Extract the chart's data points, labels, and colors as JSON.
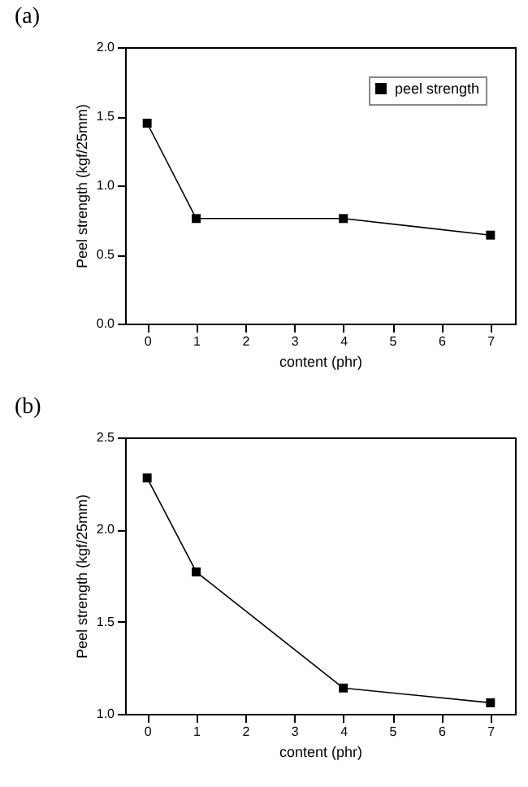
{
  "chart_data": [
    {
      "type": "line",
      "title": "(a)",
      "xlabel": "content (phr)",
      "ylabel": "Peel strength (kgf/25mm)",
      "x": [
        0,
        1,
        4,
        7
      ],
      "series": [
        {
          "name": "peel strength",
          "color": "#000000",
          "values": [
            1.45,
            0.76,
            0.76,
            0.64
          ]
        }
      ],
      "xlim": [
        -0.45,
        7.5
      ],
      "xticks": [
        0,
        1,
        2,
        3,
        4,
        5,
        6,
        7
      ],
      "ylim": [
        0,
        2
      ],
      "yticks": [
        {
          "value": 0,
          "label": "0.0"
        },
        0.5,
        {
          "value": 1,
          "label": "1.0"
        },
        1.5,
        {
          "value": 2,
          "label": "2.0"
        }
      ],
      "grid": false,
      "legend": "top right",
      "marker": "square",
      "line_style": "solid"
    },
    {
      "type": "line",
      "title": "(b)",
      "xlabel": "content (phr)",
      "ylabel": "Peel strength (kgf/25mm)",
      "x": [
        0,
        1,
        4,
        7
      ],
      "series": [
        {
          "name": "peel strength",
          "color": "#000000",
          "values": [
            2.28,
            1.77,
            1.14,
            1.06
          ]
        }
      ],
      "xlim": [
        -0.45,
        7.5
      ],
      "xticks": [
        0,
        1,
        2,
        3,
        4,
        5,
        6,
        7
      ],
      "ylim": [
        1,
        2.5
      ],
      "yticks": [
        {
          "value": 1,
          "label": "1.0"
        },
        1.5,
        {
          "value": 2,
          "label": "2.0"
        },
        2.5
      ],
      "grid": false,
      "legend": "top right",
      "marker": "square",
      "line_style": "solid"
    }
  ]
}
